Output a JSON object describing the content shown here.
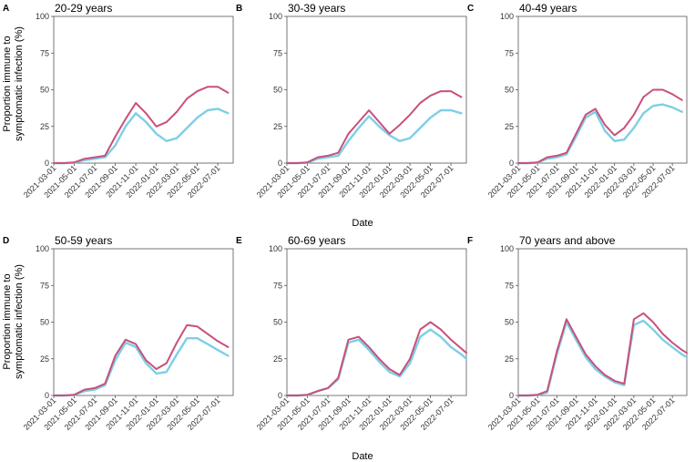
{
  "figure": {
    "ylabel_line1": "Proportion immune to",
    "ylabel_line2": "symptomatic infection (%)",
    "xlabel": "Date",
    "colors": {
      "series_a": "#c8507a",
      "series_b": "#7dcfe6",
      "axis": "#555555"
    }
  },
  "chart_data": [
    {
      "type": "line",
      "panel": "A",
      "title": "20-29 years",
      "x": [
        "2021-03-01",
        "2021-05-01",
        "2021-07-01",
        "2021-09-01",
        "2021-11-01",
        "2022-01-01",
        "2022-03-01",
        "2022-05-01",
        "2022-07-01"
      ],
      "ylim": [
        0,
        100
      ],
      "yticks": [
        0,
        25,
        50,
        75,
        100
      ],
      "xlim": [
        0,
        17.5
      ],
      "series": [
        {
          "name": "pink",
          "points": [
            [
              0,
              0
            ],
            [
              1,
              0
            ],
            [
              2,
              0.5
            ],
            [
              3,
              3
            ],
            [
              4,
              4
            ],
            [
              5,
              5
            ],
            [
              6,
              18
            ],
            [
              7,
              30
            ],
            [
              8,
              41
            ],
            [
              9,
              34
            ],
            [
              10,
              25
            ],
            [
              11,
              28
            ],
            [
              12,
              35
            ],
            [
              13,
              44
            ],
            [
              14,
              49
            ],
            [
              15,
              52
            ],
            [
              16,
              52
            ],
            [
              17,
              48
            ]
          ]
        },
        {
          "name": "blue",
          "points": [
            [
              0,
              0
            ],
            [
              1,
              0
            ],
            [
              2,
              0.3
            ],
            [
              3,
              2
            ],
            [
              4,
              3
            ],
            [
              5,
              4
            ],
            [
              6,
              12
            ],
            [
              7,
              25
            ],
            [
              8,
              34
            ],
            [
              9,
              28
            ],
            [
              10,
              20
            ],
            [
              11,
              15
            ],
            [
              12,
              17
            ],
            [
              13,
              24
            ],
            [
              14,
              31
            ],
            [
              15,
              36
            ],
            [
              16,
              37
            ],
            [
              17,
              34
            ]
          ]
        }
      ]
    },
    {
      "type": "line",
      "panel": "B",
      "title": "30-39 years",
      "x": [
        "2021-03-01",
        "2021-05-01",
        "2021-07-01",
        "2021-09-01",
        "2021-11-01",
        "2022-01-01",
        "2022-03-01",
        "2022-05-01",
        "2022-07-01"
      ],
      "ylim": [
        0,
        100
      ],
      "yticks": [
        0,
        25,
        50,
        75,
        100
      ],
      "xlim": [
        0,
        17.5
      ],
      "series": [
        {
          "name": "pink",
          "points": [
            [
              0,
              0
            ],
            [
              1,
              0
            ],
            [
              2,
              0.5
            ],
            [
              3,
              4
            ],
            [
              4,
              5
            ],
            [
              5,
              7
            ],
            [
              6,
              20
            ],
            [
              7,
              28
            ],
            [
              8,
              36
            ],
            [
              9,
              28
            ],
            [
              10,
              20
            ],
            [
              11,
              26
            ],
            [
              12,
              33
            ],
            [
              13,
              41
            ],
            [
              14,
              46
            ],
            [
              15,
              49
            ],
            [
              16,
              49
            ],
            [
              17,
              45
            ]
          ]
        },
        {
          "name": "blue",
          "points": [
            [
              0,
              0
            ],
            [
              1,
              0
            ],
            [
              2,
              0.3
            ],
            [
              3,
              3
            ],
            [
              4,
              4
            ],
            [
              5,
              5
            ],
            [
              6,
              15
            ],
            [
              7,
              24
            ],
            [
              8,
              32
            ],
            [
              9,
              25
            ],
            [
              10,
              19
            ],
            [
              11,
              15
            ],
            [
              12,
              17
            ],
            [
              13,
              24
            ],
            [
              14,
              31
            ],
            [
              15,
              36
            ],
            [
              16,
              36
            ],
            [
              17,
              34
            ]
          ]
        }
      ]
    },
    {
      "type": "line",
      "panel": "C",
      "title": "40-49 years",
      "x": [
        "2021-03-01",
        "2021-05-01",
        "2021-07-01",
        "2021-09-01",
        "2021-11-01",
        "2022-01-01",
        "2022-03-01",
        "2022-05-01",
        "2022-07-01"
      ],
      "ylim": [
        0,
        100
      ],
      "yticks": [
        0,
        25,
        50,
        75,
        100
      ],
      "xlim": [
        0,
        17.5
      ],
      "series": [
        {
          "name": "pink",
          "points": [
            [
              0,
              0
            ],
            [
              1,
              0
            ],
            [
              2,
              0.5
            ],
            [
              3,
              4
            ],
            [
              4,
              5
            ],
            [
              5,
              7
            ],
            [
              6,
              20
            ],
            [
              7,
              33
            ],
            [
              8,
              37
            ],
            [
              9,
              26
            ],
            [
              10,
              19
            ],
            [
              11,
              24
            ],
            [
              12,
              33
            ],
            [
              13,
              45
            ],
            [
              14,
              50
            ],
            [
              15,
              50
            ],
            [
              16,
              47
            ],
            [
              17,
              43
            ]
          ]
        },
        {
          "name": "blue",
          "points": [
            [
              0,
              0
            ],
            [
              1,
              0
            ],
            [
              2,
              0.3
            ],
            [
              3,
              3
            ],
            [
              4,
              4
            ],
            [
              5,
              6
            ],
            [
              6,
              18
            ],
            [
              7,
              31
            ],
            [
              8,
              35
            ],
            [
              9,
              22
            ],
            [
              10,
              15
            ],
            [
              11,
              16
            ],
            [
              12,
              24
            ],
            [
              13,
              34
            ],
            [
              14,
              39
            ],
            [
              15,
              40
            ],
            [
              16,
              38
            ],
            [
              17,
              35
            ]
          ]
        }
      ]
    },
    {
      "type": "line",
      "panel": "D",
      "title": "50-59 years",
      "x": [
        "2021-03-01",
        "2021-05-01",
        "2021-07-01",
        "2021-09-01",
        "2021-11-01",
        "2022-01-01",
        "2022-03-01",
        "2022-05-01",
        "2022-07-01"
      ],
      "ylim": [
        0,
        100
      ],
      "yticks": [
        0,
        25,
        50,
        75,
        100
      ],
      "xlim": [
        0,
        17.5
      ],
      "series": [
        {
          "name": "pink",
          "points": [
            [
              0,
              0
            ],
            [
              1,
              0
            ],
            [
              2,
              0.5
            ],
            [
              3,
              4
            ],
            [
              4,
              5
            ],
            [
              5,
              8
            ],
            [
              6,
              27
            ],
            [
              7,
              38
            ],
            [
              8,
              35
            ],
            [
              9,
              24
            ],
            [
              10,
              18
            ],
            [
              11,
              22
            ],
            [
              12,
              36
            ],
            [
              13,
              48
            ],
            [
              14,
              47
            ],
            [
              15,
              42
            ],
            [
              16,
              37
            ],
            [
              17,
              33
            ]
          ]
        },
        {
          "name": "blue",
          "points": [
            [
              0,
              0
            ],
            [
              1,
              0
            ],
            [
              2,
              0.3
            ],
            [
              3,
              3
            ],
            [
              4,
              4
            ],
            [
              5,
              7
            ],
            [
              6,
              24
            ],
            [
              7,
              36
            ],
            [
              8,
              33
            ],
            [
              9,
              22
            ],
            [
              10,
              15
            ],
            [
              11,
              16
            ],
            [
              12,
              28
            ],
            [
              13,
              39
            ],
            [
              14,
              39
            ],
            [
              15,
              35
            ],
            [
              16,
              31
            ],
            [
              17,
              27
            ]
          ]
        }
      ]
    },
    {
      "type": "line",
      "panel": "E",
      "title": "60-69 years",
      "x": [
        "2021-03-01",
        "2021-05-01",
        "2021-07-01",
        "2021-09-01",
        "2021-11-01",
        "2022-01-01",
        "2022-03-01",
        "2022-05-01",
        "2022-07-01"
      ],
      "ylim": [
        0,
        100
      ],
      "yticks": [
        0,
        25,
        50,
        75,
        100
      ],
      "xlim": [
        0,
        17.5
      ],
      "series": [
        {
          "name": "pink",
          "points": [
            [
              0,
              0
            ],
            [
              1,
              0
            ],
            [
              2,
              0.5
            ],
            [
              3,
              3
            ],
            [
              4,
              5
            ],
            [
              5,
              12
            ],
            [
              6,
              38
            ],
            [
              7,
              40
            ],
            [
              8,
              33
            ],
            [
              9,
              25
            ],
            [
              10,
              18
            ],
            [
              11,
              14
            ],
            [
              12,
              25
            ],
            [
              13,
              45
            ],
            [
              14,
              50
            ],
            [
              15,
              45
            ],
            [
              16,
              38
            ],
            [
              17,
              32
            ],
            [
              17.5,
              29
            ]
          ]
        },
        {
          "name": "blue",
          "points": [
            [
              0,
              0
            ],
            [
              1,
              0
            ],
            [
              2,
              0.3
            ],
            [
              3,
              3
            ],
            [
              4,
              5
            ],
            [
              5,
              11
            ],
            [
              6,
              36
            ],
            [
              7,
              38
            ],
            [
              8,
              31
            ],
            [
              9,
              23
            ],
            [
              10,
              16
            ],
            [
              11,
              13
            ],
            [
              12,
              22
            ],
            [
              13,
              40
            ],
            [
              14,
              45
            ],
            [
              15,
              40
            ],
            [
              16,
              33
            ],
            [
              17,
              28
            ],
            [
              17.5,
              25
            ]
          ]
        }
      ]
    },
    {
      "type": "line",
      "panel": "F",
      "title": "70 years and above",
      "x": [
        "2021-03-01",
        "2021-05-01",
        "2021-07-01",
        "2021-09-01",
        "2021-11-01",
        "2022-01-01",
        "2022-03-01",
        "2022-05-01",
        "2022-07-01"
      ],
      "ylim": [
        0,
        100
      ],
      "yticks": [
        0,
        25,
        50,
        75,
        100
      ],
      "xlim": [
        0,
        17.5
      ],
      "series": [
        {
          "name": "pink",
          "points": [
            [
              0,
              0
            ],
            [
              1,
              0
            ],
            [
              2,
              0.5
            ],
            [
              3,
              3
            ],
            [
              4,
              30
            ],
            [
              5,
              52
            ],
            [
              6,
              40
            ],
            [
              7,
              28
            ],
            [
              8,
              20
            ],
            [
              9,
              14
            ],
            [
              10,
              10
            ],
            [
              11,
              8
            ],
            [
              11.5,
              30
            ],
            [
              12,
              52
            ],
            [
              13,
              56
            ],
            [
              14,
              50
            ],
            [
              15,
              42
            ],
            [
              16,
              36
            ],
            [
              17,
              31
            ],
            [
              17.5,
              29
            ]
          ]
        },
        {
          "name": "blue",
          "points": [
            [
              0,
              0
            ],
            [
              1,
              0
            ],
            [
              2,
              0.3
            ],
            [
              3,
              2
            ],
            [
              4,
              28
            ],
            [
              5,
              50
            ],
            [
              6,
              38
            ],
            [
              7,
              26
            ],
            [
              8,
              18
            ],
            [
              9,
              13
            ],
            [
              10,
              9
            ],
            [
              11,
              7
            ],
            [
              11.5,
              28
            ],
            [
              12,
              48
            ],
            [
              13,
              51
            ],
            [
              14,
              45
            ],
            [
              15,
              38
            ],
            [
              16,
              33
            ],
            [
              17,
              28
            ],
            [
              17.5,
              26
            ]
          ]
        }
      ]
    }
  ]
}
